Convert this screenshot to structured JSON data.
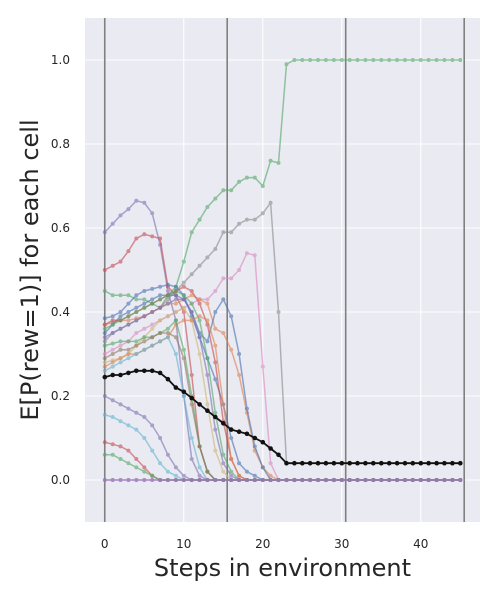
{
  "chart_data": {
    "type": "line",
    "xlabel": "Steps in environment",
    "ylabel": "E[P(rew=1)] for each cell",
    "xlim": [
      -2.5,
      47.5
    ],
    "ylim": [
      -0.1,
      1.1
    ],
    "xticks": [
      0,
      10,
      20,
      30,
      40
    ],
    "xtick_labels": [
      "0",
      "10",
      "20",
      "30",
      "40"
    ],
    "yticks": [
      0.0,
      0.2,
      0.4,
      0.6,
      0.8,
      1.0
    ],
    "ytick_labels": [
      "0.0",
      "0.2",
      "0.4",
      "0.6",
      "0.8",
      "1.0"
    ],
    "vlines": [
      0,
      15.5,
      30.5,
      45.5
    ],
    "grid": true,
    "background": "#EAEAF2",
    "series": [
      {
        "color": "#55A868",
        "values": [
          0.45,
          0.44,
          0.44,
          0.44,
          0.43,
          0.43,
          0.42,
          0.41,
          0.44,
          0.46,
          0.52,
          0.59,
          0.62,
          0.65,
          0.67,
          0.69,
          0.69,
          0.71,
          0.72,
          0.72,
          0.7,
          0.76,
          0.755,
          0.99,
          1.0,
          1.0,
          1.0,
          1.0,
          1.0,
          1.0,
          1.0,
          1.0,
          1.0,
          1.0,
          1.0,
          1.0,
          1.0,
          1.0,
          1.0,
          1.0,
          1.0,
          1.0,
          1.0,
          1.0,
          1.0,
          1.0
        ]
      },
      {
        "color": "#8C8C8C",
        "values": [
          0.33,
          0.35,
          0.36,
          0.37,
          0.38,
          0.39,
          0.4,
          0.41,
          0.43,
          0.45,
          0.47,
          0.49,
          0.51,
          0.53,
          0.55,
          0.59,
          0.59,
          0.61,
          0.62,
          0.62,
          0.635,
          0.66,
          0.4,
          0.04,
          0.04,
          0.04,
          0.04,
          0.04,
          0.04,
          0.04,
          0.04,
          0.04,
          0.04,
          0.04,
          0.04,
          0.04,
          0.04,
          0.04,
          0.04,
          0.04,
          0.04,
          0.04,
          0.04,
          0.04,
          0.04,
          0.04
        ]
      },
      {
        "color": "#DA8BC3",
        "values": [
          0.3,
          0.31,
          0.32,
          0.33,
          0.35,
          0.36,
          0.37,
          0.38,
          0.39,
          0.4,
          0.41,
          0.42,
          0.43,
          0.43,
          0.45,
          0.48,
          0.48,
          0.5,
          0.54,
          0.535,
          0.27,
          0.04,
          0.0,
          0.0,
          0.0,
          0.0,
          0.0,
          0.0,
          0.0,
          0.0,
          0.0,
          0.0,
          0.0,
          0.0,
          0.0,
          0.0,
          0.0,
          0.0,
          0.0,
          0.0,
          0.0,
          0.0,
          0.0,
          0.0,
          0.0,
          0.0
        ]
      },
      {
        "color": "#8172B3",
        "values": [
          0.59,
          0.61,
          0.63,
          0.645,
          0.665,
          0.66,
          0.635,
          0.56,
          0.45,
          0.38,
          0.2,
          0.05,
          0.01,
          0.0,
          0.0,
          0.0,
          0.0,
          0.0,
          0.0,
          0.0,
          0.0,
          0.0,
          0.0,
          0.0,
          0.0,
          0.0,
          0.0,
          0.0,
          0.0,
          0.0,
          0.0,
          0.0,
          0.0,
          0.0,
          0.0,
          0.0,
          0.0,
          0.0,
          0.0,
          0.0,
          0.0,
          0.0,
          0.0,
          0.0,
          0.0,
          0.0
        ]
      },
      {
        "color": "#C44E52",
        "values": [
          0.5,
          0.51,
          0.52,
          0.545,
          0.575,
          0.585,
          0.58,
          0.575,
          0.46,
          0.44,
          0.4,
          0.25,
          0.08,
          0.02,
          0.0,
          0.0,
          0.0,
          0.0,
          0.0,
          0.0,
          0.0,
          0.0,
          0.0,
          0.0,
          0.0,
          0.0,
          0.0,
          0.0,
          0.0,
          0.0,
          0.0,
          0.0,
          0.0,
          0.0,
          0.0,
          0.0,
          0.0,
          0.0,
          0.0,
          0.0,
          0.0,
          0.0,
          0.0,
          0.0,
          0.0,
          0.0
        ]
      },
      {
        "color": "#4C72B0",
        "values": [
          0.385,
          0.39,
          0.4,
          0.42,
          0.44,
          0.45,
          0.455,
          0.46,
          0.465,
          0.46,
          0.44,
          0.39,
          0.34,
          0.29,
          0.24,
          0.18,
          0.1,
          0.04,
          0.02,
          0.01,
          0.0,
          0.0,
          0.0,
          0.0,
          0.0,
          0.0,
          0.0,
          0.0,
          0.0,
          0.0,
          0.0,
          0.0,
          0.0,
          0.0,
          0.0,
          0.0,
          0.0,
          0.0,
          0.0,
          0.0,
          0.0,
          0.0,
          0.0,
          0.0,
          0.0,
          0.0
        ]
      },
      {
        "color": "#DD8452",
        "values": [
          0.37,
          0.375,
          0.38,
          0.38,
          0.385,
          0.39,
          0.4,
          0.41,
          0.42,
          0.42,
          0.43,
          0.44,
          0.43,
          0.42,
          0.36,
          0.35,
          0.31,
          0.25,
          0.16,
          0.07,
          0.03,
          0.01,
          0.0,
          0.0,
          0.0,
          0.0,
          0.0,
          0.0,
          0.0,
          0.0,
          0.0,
          0.0,
          0.0,
          0.0,
          0.0,
          0.0,
          0.0,
          0.0,
          0.0,
          0.0,
          0.0,
          0.0,
          0.0,
          0.0,
          0.0,
          0.0
        ]
      },
      {
        "color": "#4C72B0",
        "values": [
          0.35,
          0.37,
          0.39,
          0.4,
          0.41,
          0.42,
          0.43,
          0.44,
          0.44,
          0.44,
          0.43,
          0.4,
          0.35,
          0.33,
          0.4,
          0.43,
          0.39,
          0.3,
          0.17,
          0.08,
          0.03,
          0.0,
          0.0,
          0.0,
          0.0,
          0.0,
          0.0,
          0.0,
          0.0,
          0.0,
          0.0,
          0.0,
          0.0,
          0.0,
          0.0,
          0.0,
          0.0,
          0.0,
          0.0,
          0.0,
          0.0,
          0.0,
          0.0,
          0.0,
          0.0,
          0.0
        ]
      },
      {
        "color": "#C44E52",
        "values": [
          0.37,
          0.38,
          0.38,
          0.39,
          0.4,
          0.41,
          0.42,
          0.43,
          0.44,
          0.45,
          0.46,
          0.45,
          0.42,
          0.37,
          0.28,
          0.14,
          0.05,
          0.01,
          0.0,
          0.0,
          0.0,
          0.0,
          0.0,
          0.0,
          0.0,
          0.0,
          0.0,
          0.0,
          0.0,
          0.0,
          0.0,
          0.0,
          0.0,
          0.0,
          0.0,
          0.0,
          0.0,
          0.0,
          0.0,
          0.0,
          0.0,
          0.0,
          0.0,
          0.0,
          0.0,
          0.0
        ]
      },
      {
        "color": "#55A868",
        "values": [
          0.36,
          0.37,
          0.38,
          0.39,
          0.4,
          0.41,
          0.42,
          0.43,
          0.44,
          0.45,
          0.44,
          0.42,
          0.38,
          0.29,
          0.16,
          0.06,
          0.02,
          0.0,
          0.0,
          0.0,
          0.0,
          0.0,
          0.0,
          0.0,
          0.0,
          0.0,
          0.0,
          0.0,
          0.0,
          0.0,
          0.0,
          0.0,
          0.0,
          0.0,
          0.0,
          0.0,
          0.0,
          0.0,
          0.0,
          0.0,
          0.0,
          0.0,
          0.0,
          0.0,
          0.0,
          0.0
        ]
      },
      {
        "color": "#8172B3",
        "values": [
          0.34,
          0.35,
          0.36,
          0.37,
          0.38,
          0.39,
          0.4,
          0.41,
          0.42,
          0.43,
          0.43,
          0.4,
          0.34,
          0.25,
          0.12,
          0.04,
          0.01,
          0.0,
          0.0,
          0.0,
          0.0,
          0.0,
          0.0,
          0.0,
          0.0,
          0.0,
          0.0,
          0.0,
          0.0,
          0.0,
          0.0,
          0.0,
          0.0,
          0.0,
          0.0,
          0.0,
          0.0,
          0.0,
          0.0,
          0.0,
          0.0,
          0.0,
          0.0,
          0.0,
          0.0,
          0.0
        ]
      },
      {
        "color": "#CCB974",
        "values": [
          0.28,
          0.285,
          0.29,
          0.3,
          0.32,
          0.34,
          0.36,
          0.38,
          0.39,
          0.4,
          0.41,
          0.38,
          0.3,
          0.18,
          0.07,
          0.02,
          0.0,
          0.0,
          0.0,
          0.0,
          0.0,
          0.0,
          0.0,
          0.0,
          0.0,
          0.0,
          0.0,
          0.0,
          0.0,
          0.0,
          0.0,
          0.0,
          0.0,
          0.0,
          0.0,
          0.0,
          0.0,
          0.0,
          0.0,
          0.0,
          0.0,
          0.0,
          0.0,
          0.0,
          0.0,
          0.0
        ]
      },
      {
        "color": "#DD8452",
        "values": [
          0.27,
          0.28,
          0.29,
          0.3,
          0.3,
          0.31,
          0.32,
          0.33,
          0.34,
          0.37,
          0.38,
          0.38,
          0.39,
          0.38,
          0.32,
          0.18,
          0.05,
          0.01,
          0.0,
          0.0,
          0.0,
          0.0,
          0.0,
          0.0,
          0.0,
          0.0,
          0.0,
          0.0,
          0.0,
          0.0,
          0.0,
          0.0,
          0.0,
          0.0,
          0.0,
          0.0,
          0.0,
          0.0,
          0.0,
          0.0,
          0.0,
          0.0,
          0.0,
          0.0,
          0.0,
          0.0
        ]
      },
      {
        "color": "#55A868",
        "values": [
          0.32,
          0.325,
          0.33,
          0.33,
          0.33,
          0.34,
          0.34,
          0.35,
          0.36,
          0.38,
          0.31,
          0.2,
          0.08,
          0.02,
          0.0,
          0.0,
          0.0,
          0.0,
          0.0,
          0.0,
          0.0,
          0.0,
          0.0,
          0.0,
          0.0,
          0.0,
          0.0,
          0.0,
          0.0,
          0.0,
          0.0,
          0.0,
          0.0,
          0.0,
          0.0,
          0.0,
          0.0,
          0.0,
          0.0,
          0.0,
          0.0,
          0.0,
          0.0,
          0.0,
          0.0,
          0.0
        ]
      },
      {
        "color": "#937860",
        "values": [
          0.29,
          0.3,
          0.31,
          0.31,
          0.32,
          0.33,
          0.34,
          0.35,
          0.35,
          0.34,
          0.29,
          0.18,
          0.08,
          0.02,
          0.0,
          0.0,
          0.0,
          0.0,
          0.0,
          0.0,
          0.0,
          0.0,
          0.0,
          0.0,
          0.0,
          0.0,
          0.0,
          0.0,
          0.0,
          0.0,
          0.0,
          0.0,
          0.0,
          0.0,
          0.0,
          0.0,
          0.0,
          0.0,
          0.0,
          0.0,
          0.0,
          0.0,
          0.0,
          0.0,
          0.0,
          0.0
        ]
      },
      {
        "color": "#64B5CD",
        "values": [
          0.26,
          0.27,
          0.28,
          0.29,
          0.3,
          0.31,
          0.32,
          0.33,
          0.34,
          0.3,
          0.2,
          0.1,
          0.03,
          0.0,
          0.0,
          0.0,
          0.0,
          0.0,
          0.0,
          0.0,
          0.0,
          0.0,
          0.0,
          0.0,
          0.0,
          0.0,
          0.0,
          0.0,
          0.0,
          0.0,
          0.0,
          0.0,
          0.0,
          0.0,
          0.0,
          0.0,
          0.0,
          0.0,
          0.0,
          0.0,
          0.0,
          0.0,
          0.0,
          0.0,
          0.0,
          0.0
        ]
      },
      {
        "color": "#8172B3",
        "values": [
          0.2,
          0.19,
          0.18,
          0.17,
          0.16,
          0.15,
          0.13,
          0.1,
          0.06,
          0.03,
          0.01,
          0.0,
          0.0,
          0.0,
          0.0,
          0.0,
          0.0,
          0.0,
          0.0,
          0.0,
          0.0,
          0.0,
          0.0,
          0.0,
          0.0,
          0.0,
          0.0,
          0.0,
          0.0,
          0.0,
          0.0,
          0.0,
          0.0,
          0.0,
          0.0,
          0.0,
          0.0,
          0.0,
          0.0,
          0.0,
          0.0,
          0.0,
          0.0,
          0.0,
          0.0,
          0.0
        ]
      },
      {
        "color": "#64B5CD",
        "values": [
          0.155,
          0.15,
          0.14,
          0.13,
          0.12,
          0.1,
          0.07,
          0.04,
          0.02,
          0.01,
          0.0,
          0.0,
          0.0,
          0.0,
          0.0,
          0.0,
          0.0,
          0.0,
          0.0,
          0.0,
          0.0,
          0.0,
          0.0,
          0.0,
          0.0,
          0.0,
          0.0,
          0.0,
          0.0,
          0.0,
          0.0,
          0.0,
          0.0,
          0.0,
          0.0,
          0.0,
          0.0,
          0.0,
          0.0,
          0.0,
          0.0,
          0.0,
          0.0,
          0.0,
          0.0,
          0.0
        ]
      },
      {
        "color": "#C44E52",
        "values": [
          0.09,
          0.085,
          0.08,
          0.07,
          0.05,
          0.03,
          0.01,
          0.0,
          0.0,
          0.0,
          0.0,
          0.0,
          0.0,
          0.0,
          0.0,
          0.0,
          0.0,
          0.0,
          0.0,
          0.0,
          0.0,
          0.0,
          0.0,
          0.0,
          0.0,
          0.0,
          0.0,
          0.0,
          0.0,
          0.0,
          0.0,
          0.0,
          0.0,
          0.0,
          0.0,
          0.0,
          0.0,
          0.0,
          0.0,
          0.0,
          0.0,
          0.0,
          0.0,
          0.0,
          0.0,
          0.0
        ]
      },
      {
        "color": "#55A868",
        "values": [
          0.06,
          0.06,
          0.05,
          0.04,
          0.03,
          0.02,
          0.01,
          0.0,
          0.0,
          0.0,
          0.0,
          0.0,
          0.0,
          0.0,
          0.0,
          0.0,
          0.0,
          0.0,
          0.0,
          0.0,
          0.0,
          0.0,
          0.0,
          0.0,
          0.0,
          0.0,
          0.0,
          0.0,
          0.0,
          0.0,
          0.0,
          0.0,
          0.0,
          0.0,
          0.0,
          0.0,
          0.0,
          0.0,
          0.0,
          0.0,
          0.0,
          0.0,
          0.0,
          0.0,
          0.0,
          0.0
        ]
      },
      {
        "color": "#DA8BC3",
        "values": [
          0.0,
          0.0,
          0.0,
          0.0,
          0.0,
          0.0,
          0.0,
          0.0,
          0.0,
          0.0,
          0.0,
          0.0,
          0.0,
          0.0,
          0.0,
          0.0,
          0.0,
          0.0,
          0.0,
          0.0,
          0.0,
          0.0,
          0.0,
          0.0,
          0.0,
          0.0,
          0.0,
          0.0,
          0.0,
          0.0,
          0.0,
          0.0,
          0.0,
          0.0,
          0.0,
          0.0,
          0.0,
          0.0,
          0.0,
          0.0,
          0.0,
          0.0,
          0.0,
          0.0,
          0.0,
          0.0
        ]
      },
      {
        "color": "#8172B3",
        "values": [
          0.0,
          0.0,
          0.0,
          0.0,
          0.0,
          0.0,
          0.0,
          0.0,
          0.0,
          0.0,
          0.0,
          0.0,
          0.0,
          0.0,
          0.0,
          0.0,
          0.0,
          0.0,
          0.0,
          0.0,
          0.0,
          0.0,
          0.0,
          0.0,
          0.0,
          0.0,
          0.0,
          0.0,
          0.0,
          0.0,
          0.0,
          0.0,
          0.0,
          0.0,
          0.0,
          0.0,
          0.0,
          0.0,
          0.0,
          0.0,
          0.0,
          0.0,
          0.0,
          0.0,
          0.0,
          0.0
        ]
      },
      {
        "color": "#111111",
        "values": [
          0.245,
          0.25,
          0.25,
          0.255,
          0.26,
          0.26,
          0.26,
          0.255,
          0.24,
          0.22,
          0.21,
          0.195,
          0.18,
          0.165,
          0.15,
          0.135,
          0.12,
          0.115,
          0.11,
          0.1,
          0.09,
          0.075,
          0.06,
          0.04,
          0.04,
          0.04,
          0.04,
          0.04,
          0.04,
          0.04,
          0.04,
          0.04,
          0.04,
          0.04,
          0.04,
          0.04,
          0.04,
          0.04,
          0.04,
          0.04,
          0.04,
          0.04,
          0.04,
          0.04,
          0.04,
          0.04
        ]
      }
    ]
  }
}
